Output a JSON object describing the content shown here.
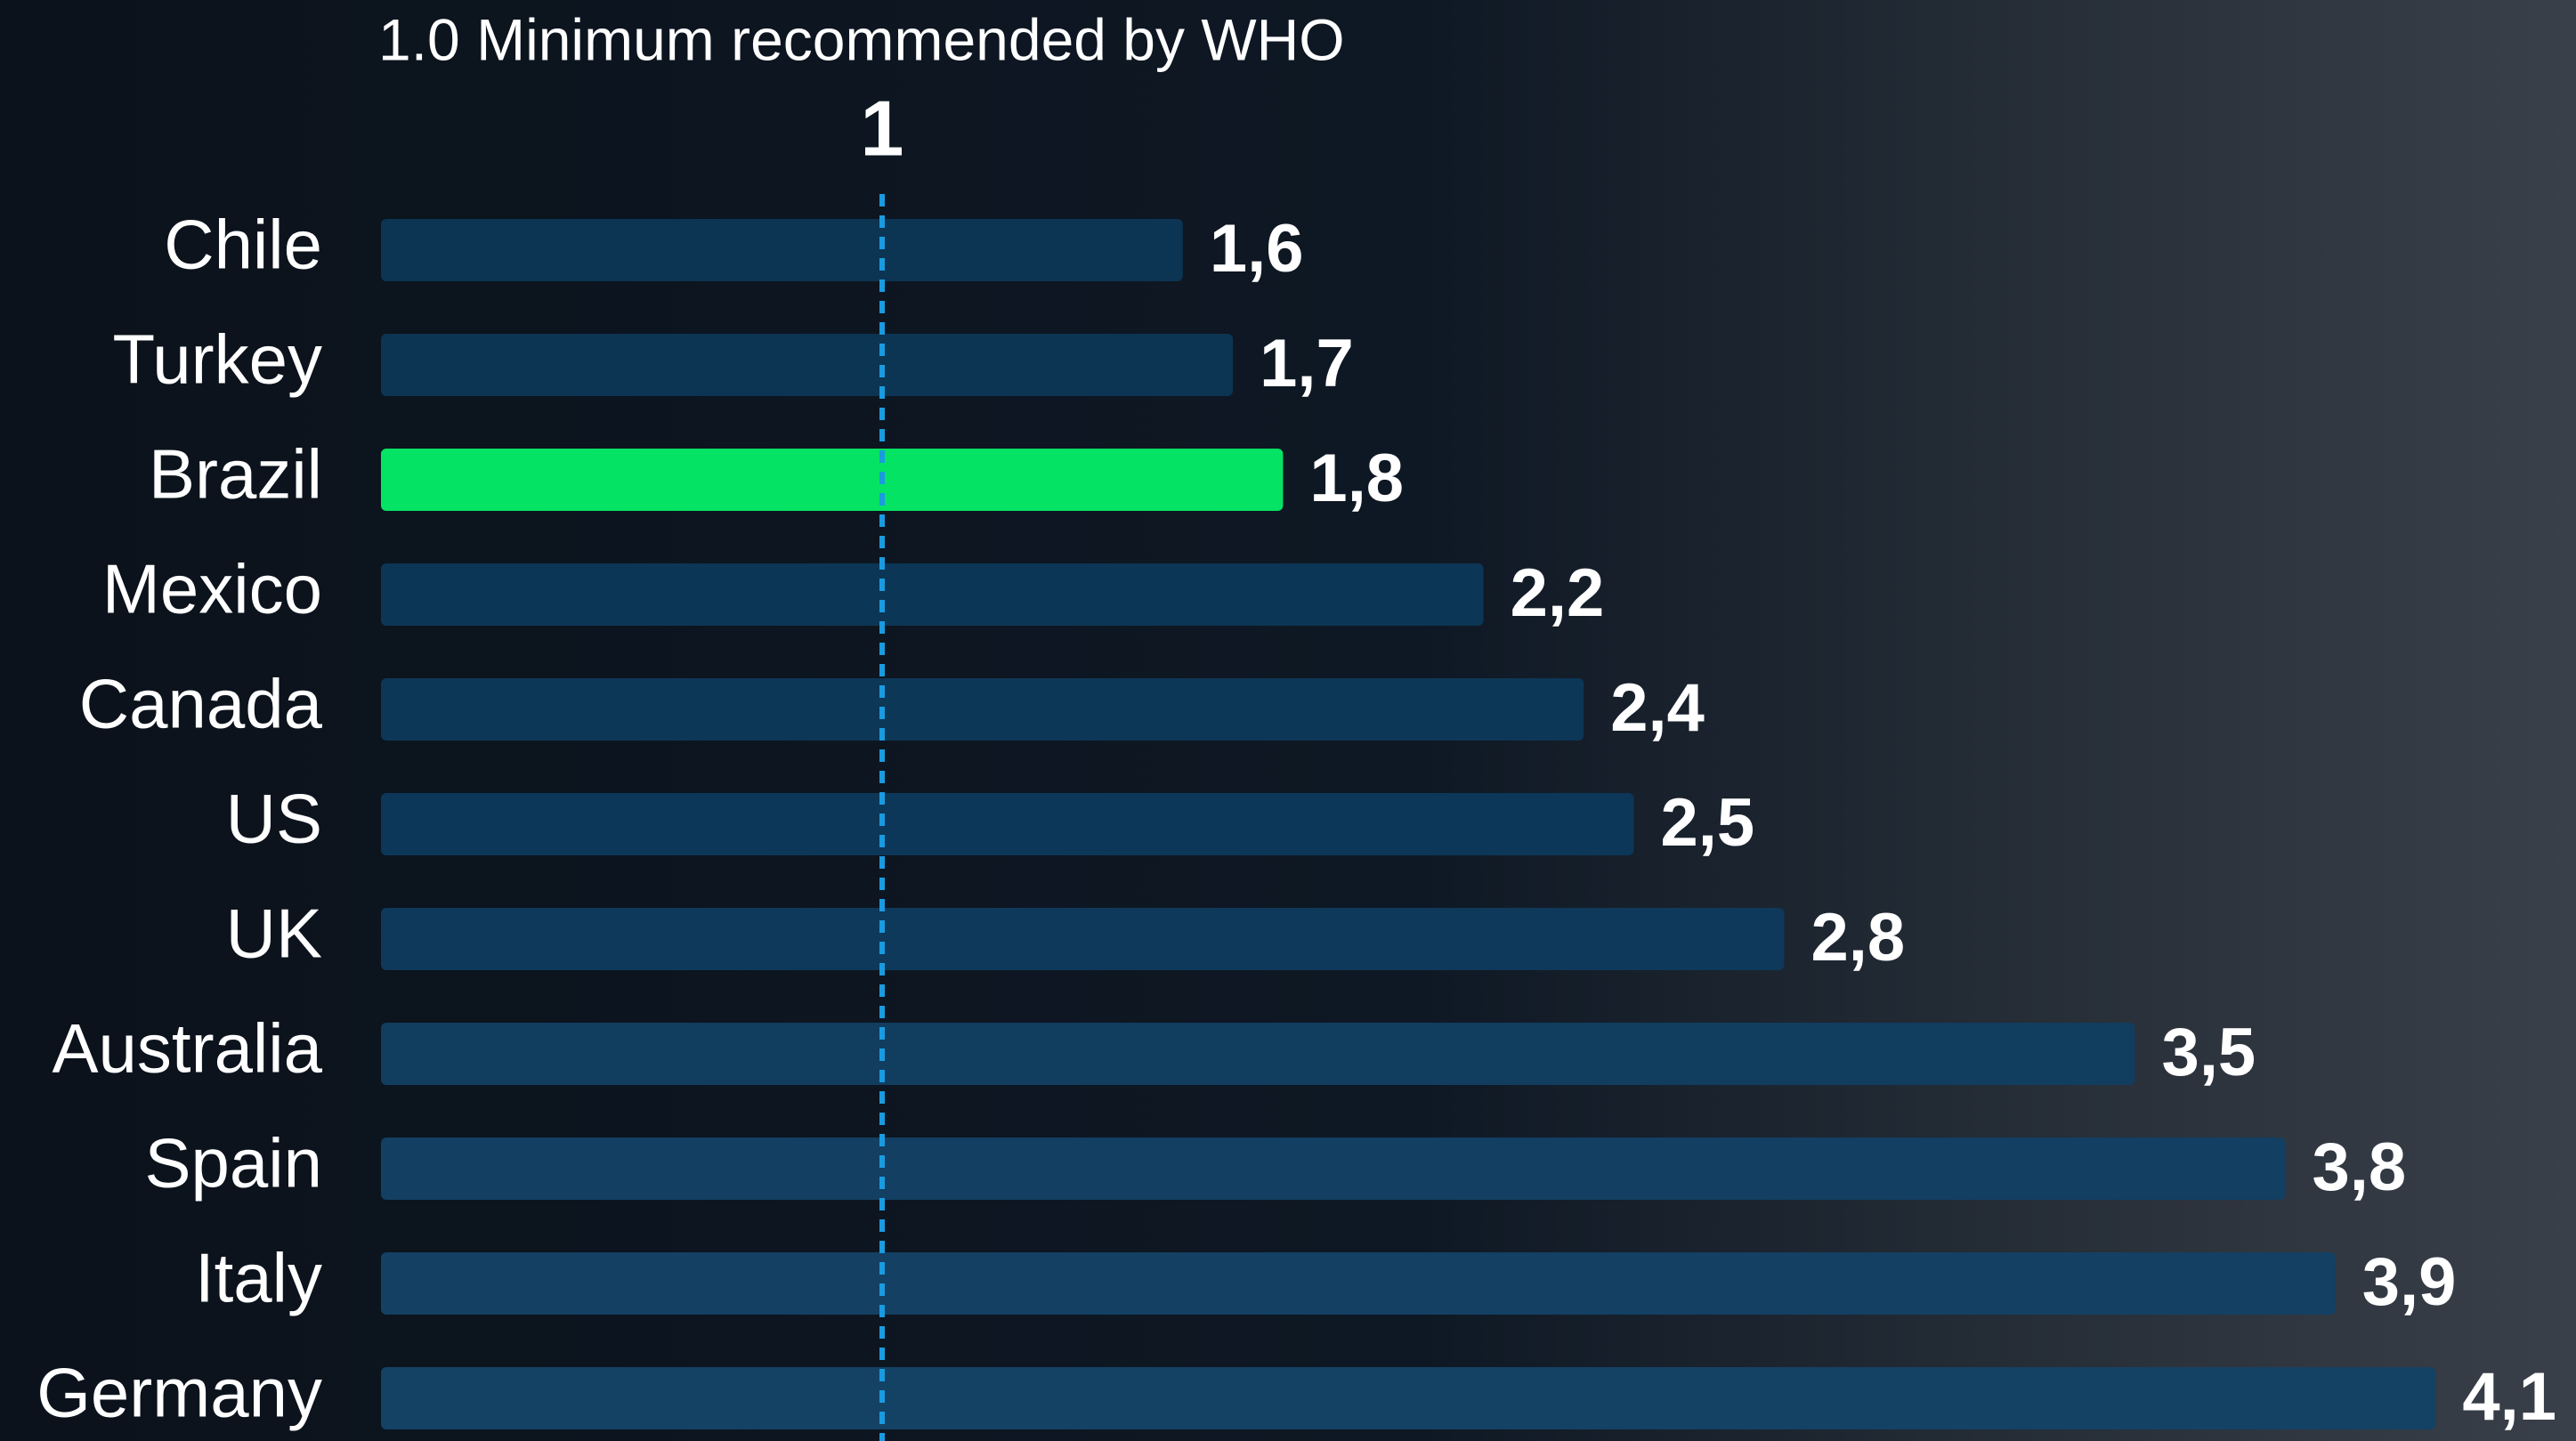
{
  "chart_data": {
    "type": "hbar",
    "categories": [
      "Chile",
      "Turkey",
      "Brazil",
      "Mexico",
      "Canada",
      "US",
      "UK",
      "Australia",
      "Spain",
      "Italy",
      "Germany"
    ],
    "values": [
      1.6,
      1.7,
      1.8,
      2.2,
      2.4,
      2.5,
      2.8,
      3.5,
      3.8,
      3.9,
      4.1
    ],
    "value_labels": [
      "1,6",
      "1,7",
      "1,8",
      "2,2",
      "2,4",
      "2,5",
      "2,8",
      "3,5",
      "3,8",
      "3,9",
      "4,1"
    ],
    "colors": [
      "#0b3552",
      "#0b3552",
      "#05e364",
      "#0c3655",
      "#0d3757",
      "#0d3758",
      "#0e395b",
      "#113d5f",
      "#123f62",
      "#134063",
      "#144265"
    ],
    "xlim": [
      0,
      4.38
    ],
    "reference_line": {
      "value": 1,
      "annotation": "1.0 Minimum recommended by WHO",
      "color": "#1a9be0"
    }
  }
}
